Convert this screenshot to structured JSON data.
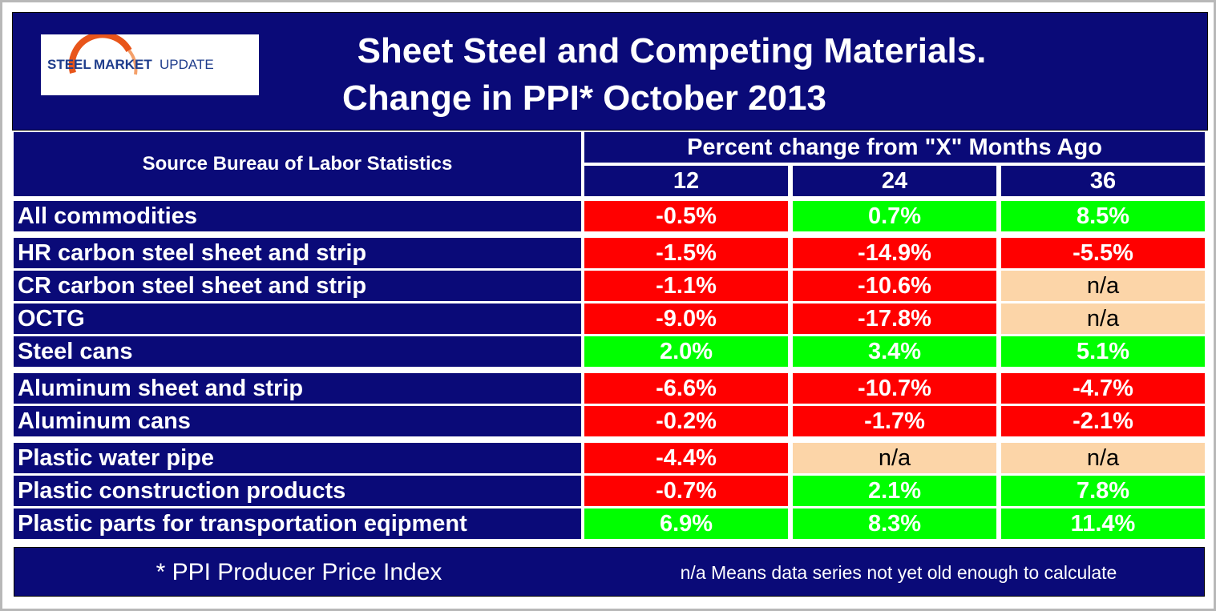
{
  "header": {
    "logo": {
      "word1": "STEEL",
      "word2": "MARKET",
      "word3": "UPDATE"
    },
    "title_lines": [
      "Sheet Steel and Competing Materials.",
      "Change in PPI* October 2013"
    ]
  },
  "table": {
    "source": "Source Bureau of Labor Statistics",
    "column_group": "Percent change from \"X\" Months Ago",
    "columns": [
      "12",
      "24",
      "36"
    ],
    "groups": [
      [
        {
          "label": "All commodities",
          "cells": [
            {
              "text": "-0.5%",
              "color": "#ff0000"
            },
            {
              "text": "0.7%",
              "color": "#00ff00"
            },
            {
              "text": "8.5%",
              "color": "#00ff00"
            }
          ]
        }
      ],
      [
        {
          "label": "HR carbon steel sheet and strip",
          "cells": [
            {
              "text": "-1.5%",
              "color": "#ff0000"
            },
            {
              "text": "-14.9%",
              "color": "#ff0000"
            },
            {
              "text": "-5.5%",
              "color": "#ff0000"
            }
          ]
        },
        {
          "label": "CR carbon steel sheet and strip",
          "cells": [
            {
              "text": "-1.1%",
              "color": "#ff0000"
            },
            {
              "text": "-10.6%",
              "color": "#ff0000"
            },
            {
              "text": "n/a",
              "color": "#fcd5a8"
            }
          ]
        },
        {
          "label": "OCTG",
          "cells": [
            {
              "text": "-9.0%",
              "color": "#ff0000"
            },
            {
              "text": "-17.8%",
              "color": "#ff0000"
            },
            {
              "text": "n/a",
              "color": "#fcd5a8"
            }
          ]
        },
        {
          "label": "Steel cans",
          "cells": [
            {
              "text": "2.0%",
              "color": "#00ff00"
            },
            {
              "text": "3.4%",
              "color": "#00ff00"
            },
            {
              "text": "5.1%",
              "color": "#00ff00"
            }
          ]
        }
      ],
      [
        {
          "label": "Aluminum sheet and strip",
          "cells": [
            {
              "text": "-6.6%",
              "color": "#ff0000"
            },
            {
              "text": "-10.7%",
              "color": "#ff0000"
            },
            {
              "text": "-4.7%",
              "color": "#ff0000"
            }
          ]
        },
        {
          "label": "Aluminum cans",
          "cells": [
            {
              "text": "-0.2%",
              "color": "#ff0000"
            },
            {
              "text": "-1.7%",
              "color": "#ff0000"
            },
            {
              "text": "-2.1%",
              "color": "#ff0000"
            }
          ]
        }
      ],
      [
        {
          "label": "Plastic water pipe",
          "cells": [
            {
              "text": "-4.4%",
              "color": "#ff0000"
            },
            {
              "text": "n/a",
              "color": "#fcd5a8"
            },
            {
              "text": "n/a",
              "color": "#fcd5a8"
            }
          ]
        },
        {
          "label": "Plastic construction products",
          "cells": [
            {
              "text": "-0.7%",
              "color": "#ff0000"
            },
            {
              "text": "2.1%",
              "color": "#00ff00"
            },
            {
              "text": "7.8%",
              "color": "#00ff00"
            }
          ]
        },
        {
          "label": "Plastic parts for transportation eqipment",
          "cells": [
            {
              "text": "6.9%",
              "color": "#00ff00"
            },
            {
              "text": "8.3%",
              "color": "#00ff00"
            },
            {
              "text": "11.4%",
              "color": "#00ff00"
            }
          ]
        }
      ]
    ]
  },
  "footer": {
    "left": "* PPI  Producer Price Index",
    "right": "n/a Means data series not yet old enough to calculate"
  }
}
